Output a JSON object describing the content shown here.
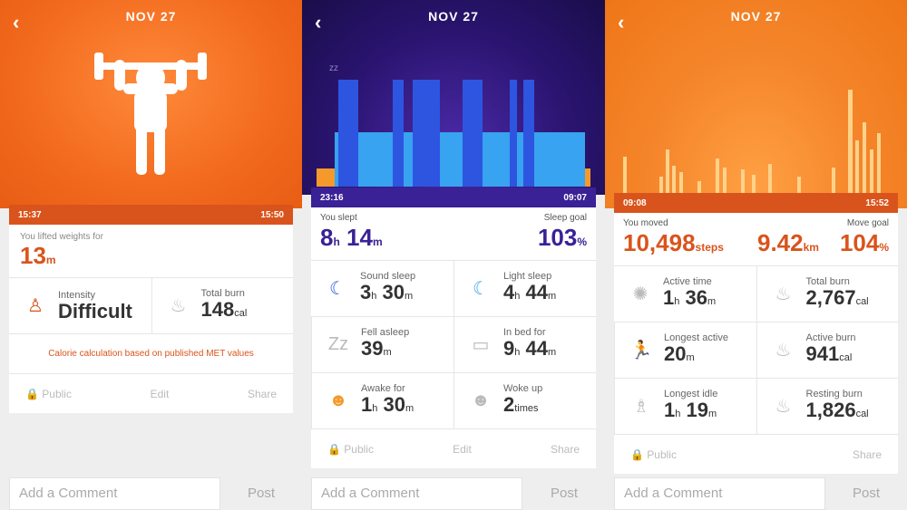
{
  "date": "NOV 27",
  "panel1": {
    "start_time": "15:37",
    "end_time": "15:50",
    "summary_label": "You lifted weights for",
    "duration_value": "13",
    "duration_unit": "m",
    "intensity_label": "Intensity",
    "intensity_value": "Difficult",
    "total_burn_label": "Total burn",
    "total_burn_value": "148",
    "total_burn_unit": "cal",
    "note": "Calorie calculation based on published MET values",
    "public_label": "Public",
    "edit_label": "Edit",
    "share_label": "Share"
  },
  "panel2": {
    "start_time": "23:16",
    "end_time": "09:07",
    "slept_label": "You slept",
    "slept_hours": "8",
    "slept_minutes": "14",
    "goal_label": "Sleep goal",
    "goal_value": "103",
    "sound_label": "Sound sleep",
    "sound_h": "3",
    "sound_m": "30",
    "light_label": "Light sleep",
    "light_h": "4",
    "light_m": "44",
    "fell_label": "Fell asleep",
    "fell_m": "39",
    "bed_label": "In bed for",
    "bed_h": "9",
    "bed_m": "44",
    "awake_label": "Awake for",
    "awake_h": "1",
    "awake_m": "30",
    "woke_label": "Woke up",
    "woke_value": "2",
    "woke_unit": "times",
    "public_label": "Public",
    "edit_label": "Edit",
    "share_label": "Share"
  },
  "panel3": {
    "start_time": "09:08",
    "end_time": "15:52",
    "moved_label": "You moved",
    "steps_value": "10,498",
    "steps_unit": "steps",
    "km_value": "9.42",
    "km_unit": "km",
    "goal_label": "Move goal",
    "goal_value": "104",
    "active_time_label": "Active time",
    "active_time_h": "1",
    "active_time_m": "36",
    "total_burn_label": "Total burn",
    "total_burn_value": "2,767",
    "longest_active_label": "Longest active",
    "longest_active_m": "20",
    "active_burn_label": "Active burn",
    "active_burn_value": "941",
    "longest_idle_label": "Longest idle",
    "longest_idle_h": "1",
    "longest_idle_m": "19",
    "resting_burn_label": "Resting burn",
    "resting_burn_value": "1,826",
    "public_label": "Public",
    "share_label": "Share"
  },
  "units": {
    "h": "h",
    "m": "m",
    "cal": "cal",
    "percent": "%"
  },
  "comment_placeholder": "Add a Comment",
  "post_label": "Post",
  "colors": {
    "orange": "#f26a1e",
    "purple": "#3a2196",
    "sleep_deep": "#2d55e0",
    "sleep_light": "#38a3f0"
  }
}
